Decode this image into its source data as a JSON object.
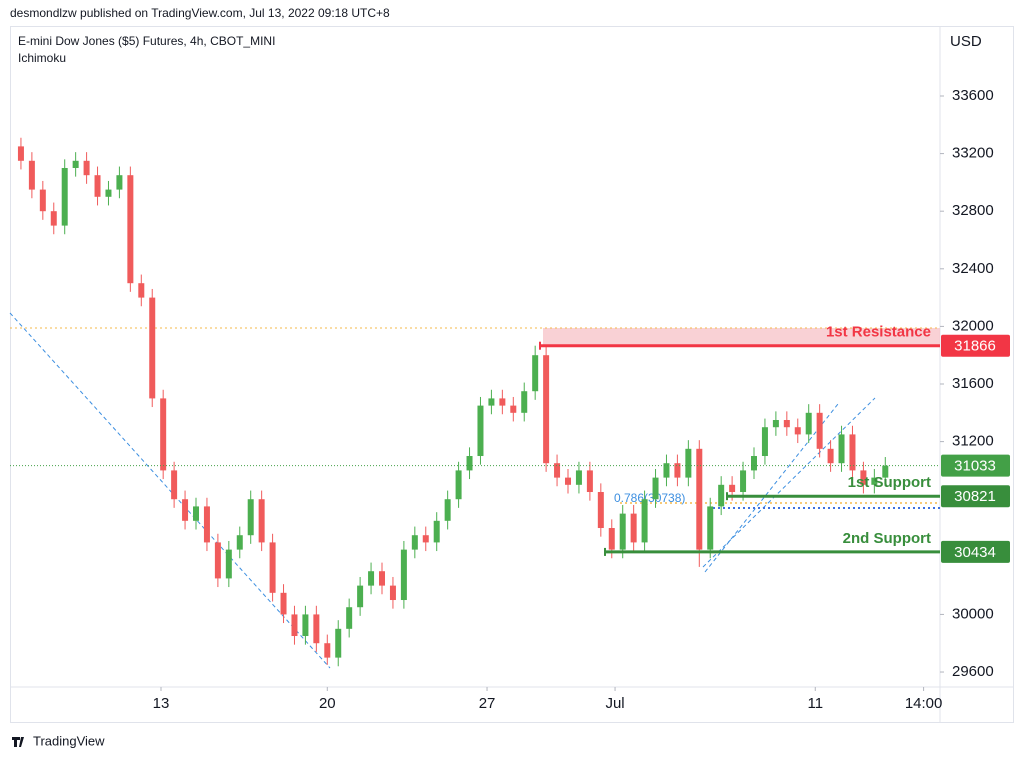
{
  "header": {
    "publisher": "desmondlzw published on TradingView.com, Jul 13, 2022 09:18 UTC+8",
    "brand": "TradingView"
  },
  "chart_data": {
    "type": "candlestick",
    "title": "E-mini Dow Jones ($5) Futures, 4h, CBOT_MINI",
    "subtitle": "Ichimoku",
    "y_axis_label": "USD",
    "up_color": "#4caf50",
    "down_color": "#f05b5b",
    "open": [
      33250,
      33150,
      32950,
      32800,
      32700,
      33100,
      33150,
      33050,
      32900,
      32950,
      33050,
      32300,
      32200,
      31500,
      31000,
      30800,
      30650,
      30750,
      30500,
      30250,
      30450,
      30550,
      30800,
      30500,
      30150,
      30000,
      29850,
      30000,
      29800,
      29700,
      29900,
      30050,
      30200,
      30300,
      30200,
      30100,
      30450,
      30550,
      30500,
      30650,
      30800,
      31000,
      31100,
      31450,
      31500,
      31450,
      31400,
      31550,
      31800,
      31050,
      30950,
      30900,
      31000,
      30850,
      30600,
      30450,
      30700,
      30500,
      30800,
      30950,
      31050,
      30950,
      31150,
      30450,
      30750,
      30900,
      30850,
      31000,
      31100,
      31300,
      31350,
      31300,
      31250,
      31400,
      31150,
      31050,
      31250,
      31000,
      30900,
      30950
    ],
    "high": [
      33310,
      33210,
      33010,
      32860,
      33160,
      33210,
      33210,
      33110,
      33010,
      33110,
      33110,
      32360,
      32260,
      31560,
      31060,
      30860,
      30810,
      30810,
      30560,
      30510,
      30610,
      30860,
      30860,
      30560,
      30210,
      30060,
      30060,
      30060,
      29860,
      29960,
      30110,
      30260,
      30360,
      30360,
      30260,
      30510,
      30610,
      30610,
      30710,
      30860,
      31060,
      31160,
      31510,
      31560,
      31560,
      31510,
      31610,
      31866,
      31860,
      31110,
      31010,
      31060,
      31060,
      30910,
      30660,
      30760,
      30760,
      30860,
      31010,
      31110,
      31110,
      31210,
      31210,
      30810,
      30960,
      30960,
      31060,
      31160,
      31360,
      31410,
      31410,
      31360,
      31460,
      31460,
      31210,
      31310,
      31310,
      31060,
      31010,
      31093
    ],
    "low": [
      33090,
      32890,
      32740,
      32640,
      32640,
      33040,
      32990,
      32840,
      32840,
      32890,
      32240,
      32140,
      31440,
      30940,
      30740,
      30590,
      30590,
      30440,
      30190,
      30190,
      30390,
      30490,
      30440,
      30090,
      29940,
      29790,
      29790,
      29740,
      29650,
      29640,
      29840,
      29990,
      30140,
      30140,
      30040,
      30040,
      30390,
      30440,
      30440,
      30590,
      30740,
      30940,
      31040,
      31390,
      31390,
      31340,
      31340,
      31490,
      30990,
      30890,
      30840,
      30840,
      30790,
      30540,
      30390,
      30390,
      30440,
      30440,
      30740,
      30890,
      30890,
      30890,
      30330,
      30390,
      30690,
      30790,
      30790,
      30940,
      31040,
      31240,
      31240,
      31190,
      31190,
      31090,
      30990,
      30990,
      30940,
      30840,
      30840,
      30890
    ],
    "close": [
      33150,
      32950,
      32800,
      32700,
      33100,
      33150,
      33050,
      32900,
      32950,
      33050,
      32300,
      32200,
      31500,
      31000,
      30800,
      30650,
      30750,
      30500,
      30250,
      30450,
      30550,
      30800,
      30500,
      30150,
      30000,
      29850,
      30000,
      29800,
      29700,
      29900,
      30050,
      30200,
      30300,
      30200,
      30100,
      30450,
      30550,
      30500,
      30650,
      30800,
      31000,
      31100,
      31450,
      31500,
      31450,
      31400,
      31550,
      31800,
      31050,
      30950,
      30900,
      31000,
      30850,
      30600,
      30450,
      30700,
      30500,
      30800,
      30950,
      31050,
      30950,
      31150,
      30450,
      30750,
      30900,
      30850,
      31000,
      31100,
      31300,
      31350,
      31300,
      31250,
      31400,
      31150,
      31050,
      31250,
      31000,
      30900,
      30950,
      31033
    ],
    "xlim": [
      -1,
      84
    ],
    "xticks": [
      {
        "value": 12.8,
        "label": "13"
      },
      {
        "value": 28,
        "label": "20"
      },
      {
        "value": 42.6,
        "label": "27"
      },
      {
        "value": 54.3,
        "label": "Jul"
      },
      {
        "value": 72.6,
        "label": "11"
      },
      {
        "value": 82.5,
        "label": "14:00"
      }
    ],
    "ylim": [
      29496,
      34086
    ],
    "yticks": [
      29600,
      30000,
      31200,
      31600,
      32000,
      32400,
      32800,
      33200,
      33600
    ],
    "grid": false,
    "levels": [
      {
        "value": 31866,
        "label": "1st Resistance",
        "color": "#f23645"
      },
      {
        "value": 31033,
        "color": "#43a047"
      },
      {
        "value": 30821,
        "label": "1st Support",
        "color": "#388e3c"
      },
      {
        "value": 30434,
        "label": "2nd Support",
        "color": "#388e3c"
      }
    ],
    "annotations": [
      "0.786(30738)"
    ]
  }
}
